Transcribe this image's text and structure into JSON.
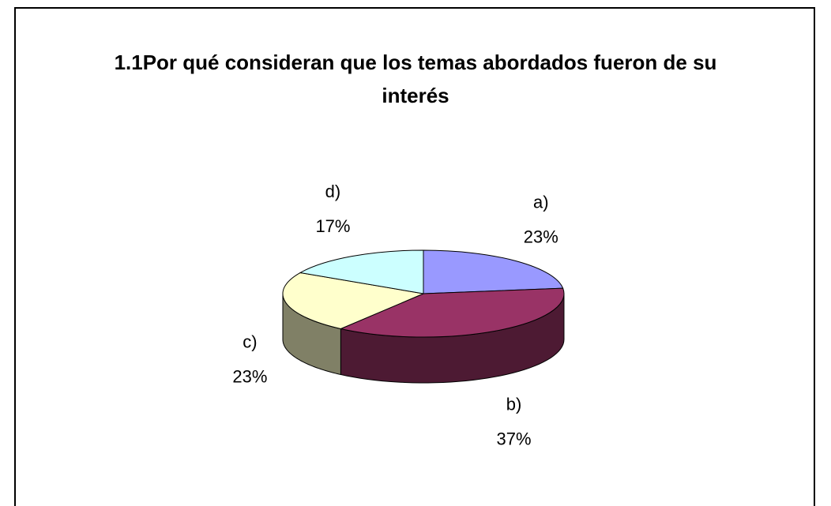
{
  "chart_data": {
    "type": "pie",
    "title": "1.1Por qué consideran que los temas abordados fueron de su interés",
    "categories": [
      "a)",
      "b)",
      "c)",
      "d)"
    ],
    "values": [
      23,
      37,
      23,
      17
    ],
    "value_labels": [
      "23%",
      "37%",
      "23%",
      "17%"
    ],
    "colors": [
      "#9999ff",
      "#993366",
      "#ffffcc",
      "#ccffff"
    ]
  }
}
